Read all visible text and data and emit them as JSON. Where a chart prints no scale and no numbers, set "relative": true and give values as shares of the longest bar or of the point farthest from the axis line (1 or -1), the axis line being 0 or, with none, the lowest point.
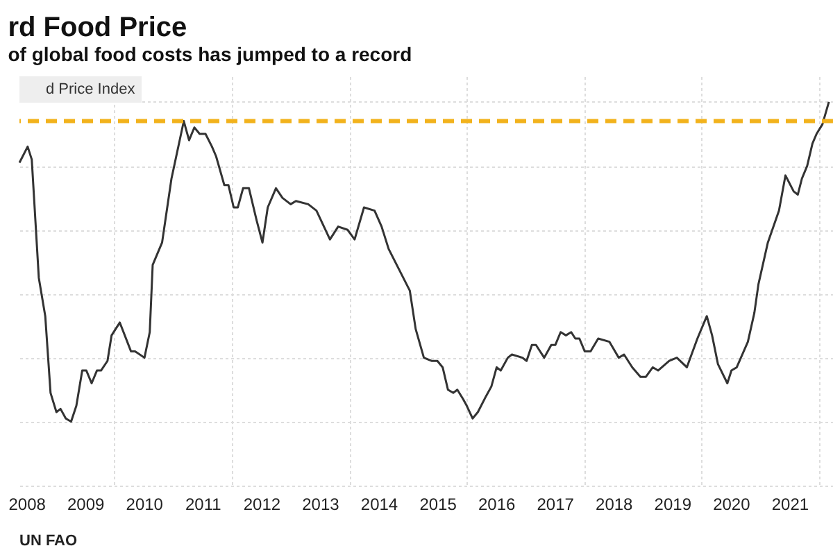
{
  "chart_data": {
    "type": "line",
    "title": "rd Food Price",
    "subtitle": "of global food costs has jumped to a record",
    "annotations": [
      "UN FAO"
    ],
    "relative": true,
    "grid": true,
    "legend": "top left",
    "line_style": "solid",
    "xlim": [
      2008.38,
      2022.24
    ],
    "xticks": [
      {
        "value": 2008.5,
        "label": "2008"
      },
      {
        "value": 2009.5,
        "label": "2009"
      },
      {
        "value": 2010,
        "label": null
      },
      {
        "value": 2010.5,
        "label": "2010"
      },
      {
        "value": 2011.5,
        "label": "2011"
      },
      {
        "value": 2012,
        "label": null
      },
      {
        "value": 2012.5,
        "label": "2012"
      },
      {
        "value": 2013.5,
        "label": "2013"
      },
      {
        "value": 2014,
        "label": null
      },
      {
        "value": 2014.5,
        "label": "2014"
      },
      {
        "value": 2015.5,
        "label": "2015"
      },
      {
        "value": 2016,
        "label": null
      },
      {
        "value": 2016.5,
        "label": "2016"
      },
      {
        "value": 2017.5,
        "label": "2017"
      },
      {
        "value": 2018,
        "label": null
      },
      {
        "value": 2018.5,
        "label": "2018"
      },
      {
        "value": 2019.5,
        "label": "2019"
      },
      {
        "value": 2020,
        "label": null
      },
      {
        "value": 2020.5,
        "label": "2020"
      },
      {
        "value": 2021.5,
        "label": "2021"
      },
      {
        "value": 2022,
        "label": null
      }
    ],
    "ref_lines": [
      {
        "axis": "y",
        "value": 0.94,
        "label": null,
        "color": "#f2b21c",
        "line_style": "dashed"
      }
    ],
    "series": [
      {
        "name": "d Price Index",
        "color": "#333333",
        "x": [
          2008.38,
          2008.52,
          2008.59,
          2008.71,
          2008.82,
          2008.91,
          2009.01,
          2009.08,
          2009.17,
          2009.26,
          2009.35,
          2009.45,
          2009.52,
          2009.61,
          2009.7,
          2009.77,
          2009.88,
          2009.95,
          2010.09,
          2010.28,
          2010.35,
          2010.51,
          2010.6,
          2010.65,
          2010.81,
          2010.97,
          2011.18,
          2011.27,
          2011.36,
          2011.45,
          2011.55,
          2011.66,
          2011.73,
          2011.87,
          2011.94,
          2012.03,
          2012.1,
          2012.19,
          2012.29,
          2012.42,
          2012.52,
          2012.61,
          2012.75,
          2012.86,
          2013.0,
          2013.09,
          2013.3,
          2013.44,
          2013.67,
          2013.81,
          2013.97,
          2014.09,
          2014.25,
          2014.43,
          2014.55,
          2014.67,
          2015.03,
          2015.13,
          2015.27,
          2015.4,
          2015.5,
          2015.59,
          2015.68,
          2015.77,
          2015.84,
          2015.94,
          2016.0,
          2016.1,
          2016.19,
          2016.33,
          2016.42,
          2016.51,
          2016.58,
          2016.7,
          2016.77,
          2016.95,
          2017.02,
          2017.11,
          2017.18,
          2017.32,
          2017.44,
          2017.51,
          2017.6,
          2017.69,
          2017.78,
          2017.85,
          2017.92,
          2018.01,
          2018.11,
          2018.24,
          2018.43,
          2018.59,
          2018.68,
          2018.82,
          2018.96,
          2019.05,
          2019.17,
          2019.26,
          2019.45,
          2019.58,
          2019.75,
          2019.93,
          2020.09,
          2020.18,
          2020.28,
          2020.44,
          2020.51,
          2020.6,
          2020.79,
          2020.9,
          2020.97,
          2021.13,
          2021.32,
          2021.43,
          2021.57,
          2021.64,
          2021.71,
          2021.8,
          2021.89,
          2021.96,
          2022.06,
          2022.17
        ],
        "values": [
          0.81,
          0.86,
          0.82,
          0.45,
          0.33,
          0.09,
          0.03,
          0.04,
          0.01,
          0.0,
          0.05,
          0.16,
          0.16,
          0.12,
          0.16,
          0.16,
          0.19,
          0.27,
          0.31,
          0.22,
          0.22,
          0.2,
          0.28,
          0.49,
          0.56,
          0.76,
          0.94,
          0.88,
          0.92,
          0.9,
          0.9,
          0.86,
          0.83,
          0.74,
          0.74,
          0.67,
          0.67,
          0.73,
          0.73,
          0.63,
          0.56,
          0.67,
          0.73,
          0.7,
          0.68,
          0.69,
          0.68,
          0.66,
          0.57,
          0.61,
          0.6,
          0.57,
          0.67,
          0.66,
          0.61,
          0.54,
          0.41,
          0.29,
          0.2,
          0.19,
          0.19,
          0.17,
          0.1,
          0.09,
          0.1,
          0.07,
          0.05,
          0.01,
          0.03,
          0.08,
          0.11,
          0.17,
          0.16,
          0.2,
          0.21,
          0.2,
          0.19,
          0.24,
          0.24,
          0.2,
          0.24,
          0.24,
          0.28,
          0.27,
          0.28,
          0.26,
          0.26,
          0.22,
          0.22,
          0.26,
          0.25,
          0.2,
          0.21,
          0.17,
          0.14,
          0.14,
          0.17,
          0.16,
          0.19,
          0.2,
          0.17,
          0.26,
          0.33,
          0.27,
          0.18,
          0.12,
          0.16,
          0.17,
          0.25,
          0.34,
          0.43,
          0.56,
          0.66,
          0.77,
          0.72,
          0.71,
          0.76,
          0.8,
          0.87,
          0.9,
          0.93,
          1.0
        ]
      }
    ]
  }
}
